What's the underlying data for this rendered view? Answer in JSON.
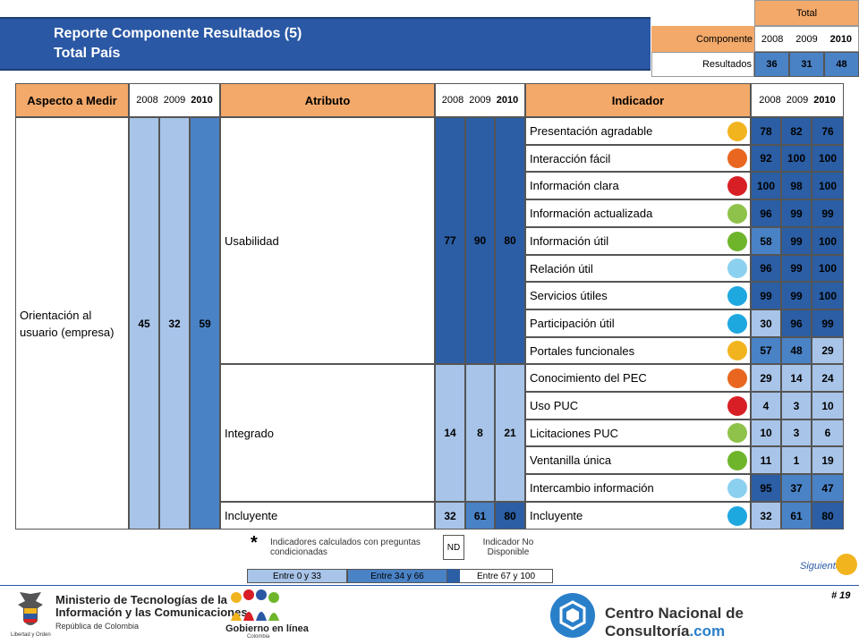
{
  "header": {
    "title": "Reporte Componente Resultados (5)",
    "subtitle": "Total País"
  },
  "summary": {
    "total_label": "Total",
    "componente_label": "Componente",
    "years": [
      "2008",
      "2009",
      "2010"
    ],
    "row_label": "Resultados",
    "values": [
      "36",
      "31",
      "48"
    ]
  },
  "table": {
    "headers": {
      "aspecto": "Aspecto a Medir",
      "atributo": "Atributo",
      "indicador": "Indicador",
      "years": [
        "2008",
        "2009",
        "2010"
      ]
    },
    "aspecto": {
      "label": "Orientación al usuario (empresa)",
      "values": [
        "45",
        "32",
        "59"
      ]
    },
    "atributos": [
      {
        "label": "Usabilidad",
        "values": [
          "77",
          "90",
          "80"
        ]
      },
      {
        "label": "Integrado",
        "values": [
          "14",
          "8",
          "21"
        ]
      },
      {
        "label": "Incluyente",
        "values": [
          "32",
          "61",
          "80"
        ]
      }
    ],
    "indicadores": [
      {
        "label": "Presentación agradable",
        "values": [
          "78",
          "82",
          "76"
        ],
        "dot": "#f2b41e"
      },
      {
        "label": "Interacción fácil",
        "values": [
          "92",
          "100",
          "100"
        ],
        "dot": "#e8661f"
      },
      {
        "label": "Información clara",
        "values": [
          "100",
          "98",
          "100"
        ],
        "dot": "#d81f26"
      },
      {
        "label": "Información actualizada",
        "values": [
          "96",
          "99",
          "99"
        ],
        "dot": "#8fc24a"
      },
      {
        "label": "Información útil",
        "values": [
          "58",
          "99",
          "100"
        ],
        "dot": "#6fb52c"
      },
      {
        "label": "Relación útil",
        "values": [
          "96",
          "99",
          "100"
        ],
        "dot": "#8cd0ef"
      },
      {
        "label": "Servicios útiles",
        "values": [
          "99",
          "99",
          "100"
        ],
        "dot": "#1ea8e0"
      },
      {
        "label": "Participación útil",
        "values": [
          "30",
          "96",
          "99"
        ],
        "dot": "#1ea8e0"
      },
      {
        "label": "Portales funcionales",
        "values": [
          "57",
          "48",
          "29"
        ],
        "dot": "#f2b41e"
      },
      {
        "label": "Conocimiento del PEC",
        "values": [
          "29",
          "14",
          "24"
        ],
        "dot": "#e8661f"
      },
      {
        "label": "Uso PUC",
        "values": [
          "4",
          "3",
          "10"
        ],
        "dot": "#d81f26"
      },
      {
        "label": "Licitaciones PUC",
        "values": [
          "10",
          "3",
          "6"
        ],
        "dot": "#8fc24a"
      },
      {
        "label": "Ventanilla única",
        "values": [
          "11",
          "1",
          "19"
        ],
        "dot": "#6fb52c"
      },
      {
        "label": "Intercambio información",
        "values": [
          "95",
          "37",
          "47"
        ],
        "dot": "#8cd0ef"
      },
      {
        "label": "Incluyente",
        "values": [
          "32",
          "61",
          "80"
        ],
        "dot": "#1ea8e0"
      }
    ]
  },
  "legend": {
    "asterisk": "*",
    "asterisk_text": "Indicadores calculados con preguntas condicionadas",
    "nd": "ND",
    "nd_text": "Indicador No Disponible",
    "scale": [
      "Entre 0 y 33",
      "Entre 34 y 66",
      "Entre 67 y 100"
    ]
  },
  "nav": {
    "next_label": "Siguiente",
    "page": "# 19"
  },
  "footer": {
    "ministry_line1": "Ministerio de Tecnologías de la",
    "ministry_line2": "Información y las Comunicaciones",
    "ministry_line3": "República de Colombia",
    "motto": "Libertad y Orden",
    "gel_line1": "Gobierno en línea",
    "gel_line2": "Colombia",
    "cnc": "Centro Nacional de Consultoría",
    "cnc_suffix": ".com"
  },
  "colors": {
    "banner": "#2a58a4",
    "header_orange": "#f3a96a",
    "range_low": "#a8c4e8",
    "range_mid": "#4a82c6",
    "range_high": "#2b5ea4"
  }
}
